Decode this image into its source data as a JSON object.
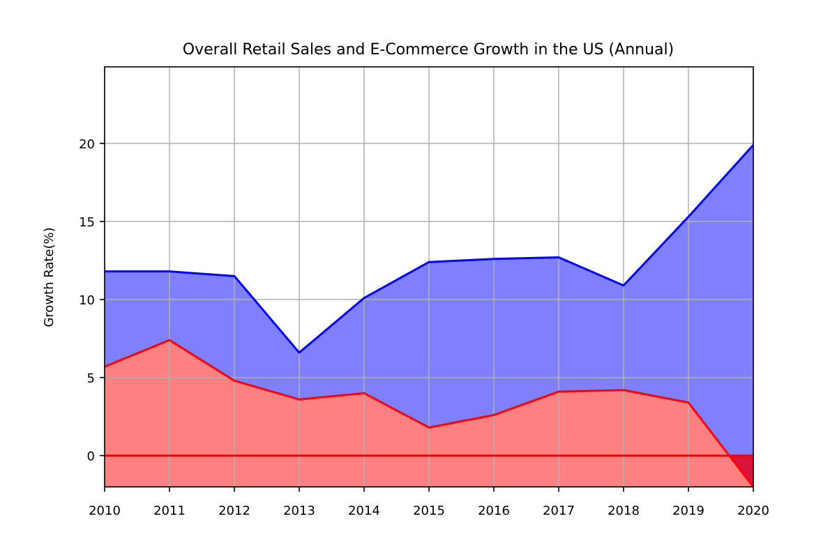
{
  "chart_data": {
    "type": "area",
    "title": "Overall Retail Sales and E-Commerce Growth in the US (Annual)",
    "xlabel": "",
    "ylabel": "Growth Rate(%)",
    "x": [
      2010,
      2011,
      2012,
      2013,
      2014,
      2015,
      2016,
      2017,
      2018,
      2019,
      2020
    ],
    "xlim": [
      2010,
      2020
    ],
    "ylim": [
      -2,
      24.9
    ],
    "xticks": [
      "2010",
      "2011",
      "2012",
      "2013",
      "2014",
      "2015",
      "2016",
      "2017",
      "2018",
      "2019",
      "2020"
    ],
    "yticks": [
      0,
      5,
      10,
      15,
      20
    ],
    "ytick_labels": [
      "0",
      "5",
      "10",
      "15",
      "20"
    ],
    "grid": true,
    "legend": "none",
    "series": [
      {
        "values": [
          11.8,
          11.8,
          11.5,
          6.6,
          10.1,
          12.4,
          12.6,
          12.7,
          10.9,
          15.3,
          19.9
        ],
        "line_color": "#0000ff",
        "fill_color": "#8080ff"
      },
      {
        "values": [
          5.7,
          7.4,
          4.8,
          3.6,
          4.0,
          1.8,
          2.6,
          4.1,
          4.2,
          3.4,
          -2.0
        ],
        "line_color": "#ff0000",
        "fill_color": "#ff8080"
      }
    ],
    "baseline": {
      "value": 0,
      "color": "#ff0000"
    },
    "overlap_fill_color": "#dc143c"
  }
}
